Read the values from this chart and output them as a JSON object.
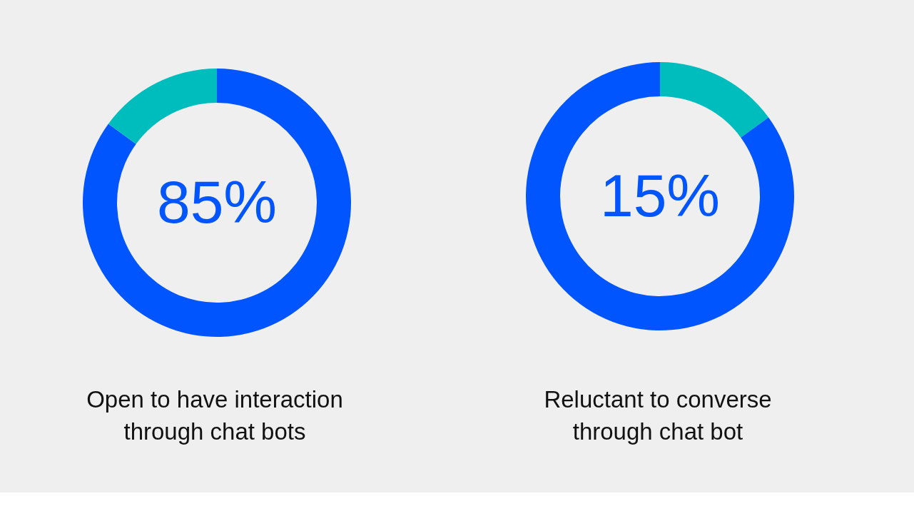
{
  "chart_data": [
    {
      "type": "donut",
      "title": "Open to have interaction\nthrough chat bots",
      "categories": [
        null,
        null
      ],
      "values": [
        85,
        15
      ],
      "colors": [
        "#0055ff",
        "#00bdbd"
      ],
      "annotations": [
        "85%"
      ]
    },
    {
      "type": "donut",
      "title": "Reluctant to converse\nthrough chat bot",
      "categories": [
        null,
        null
      ],
      "values": [
        15,
        85
      ],
      "colors": [
        "#00bdbd",
        "#0055ff"
      ],
      "annotations": [
        "15%"
      ]
    }
  ]
}
